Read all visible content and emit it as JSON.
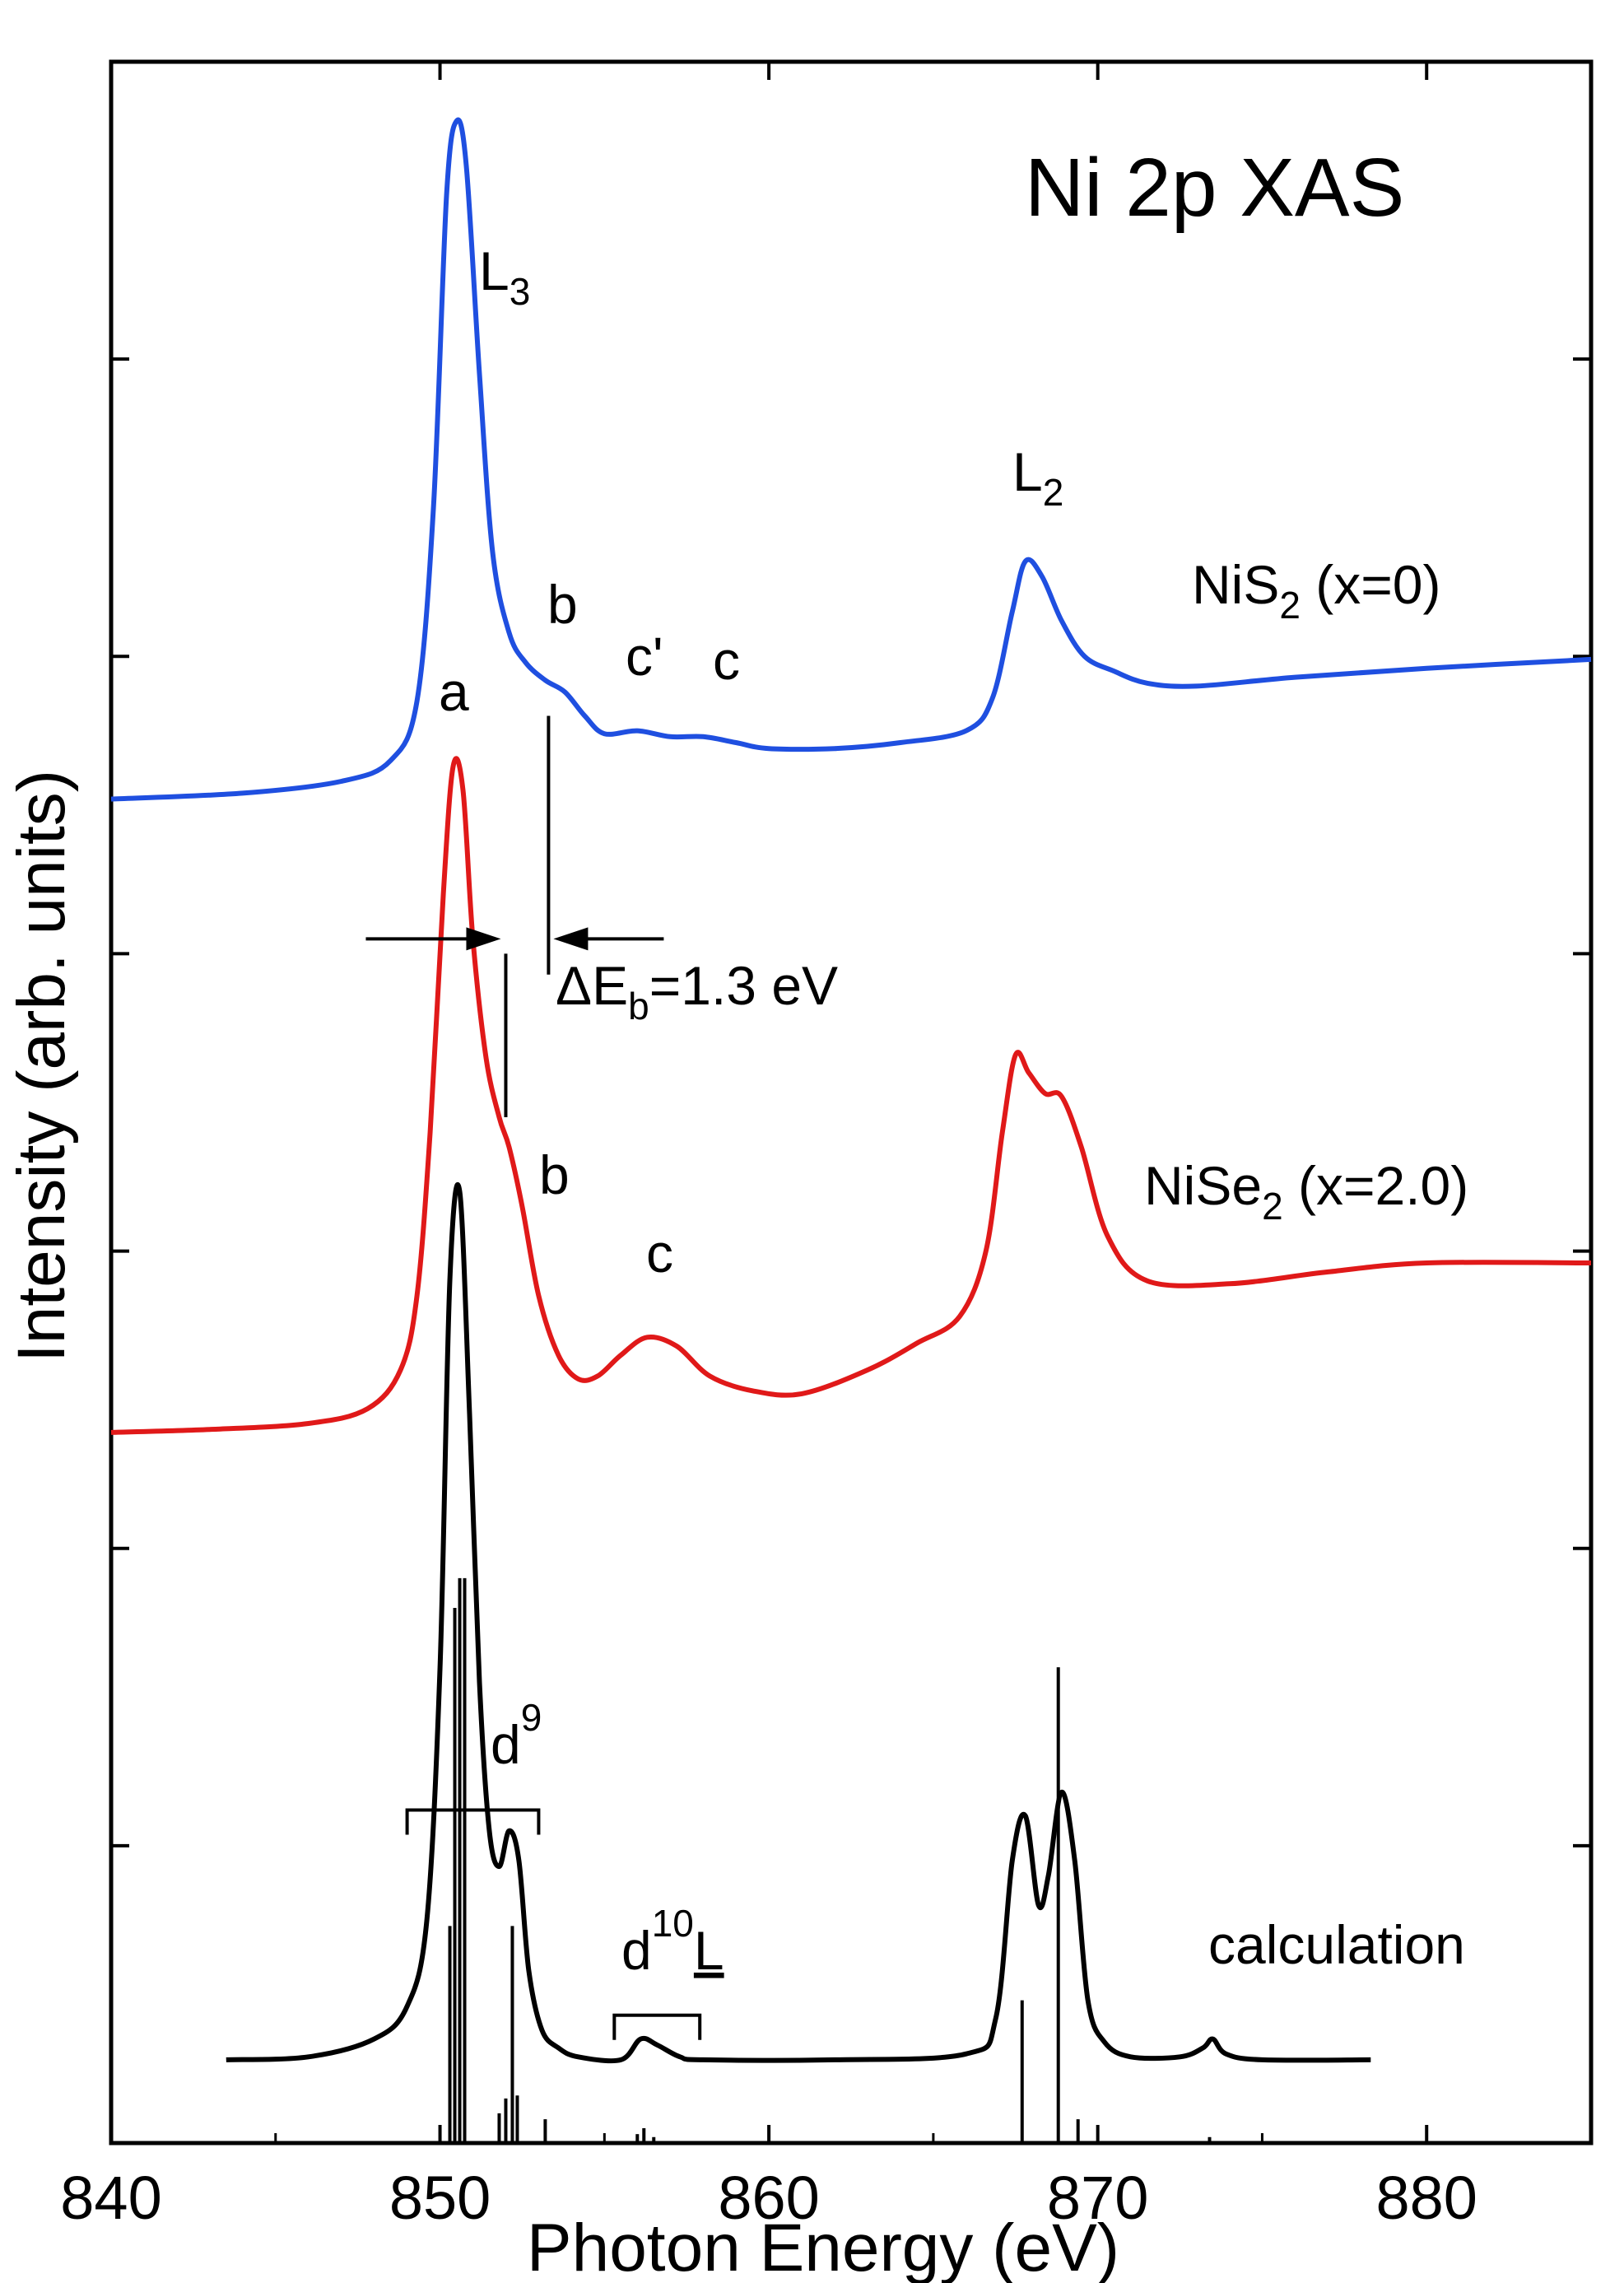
{
  "chart_data": {
    "type": "line",
    "title": "Ni 2p XAS",
    "xlabel": "Photon Energy (eV)",
    "ylabel": "Intensity (arb. units)",
    "xlim": [
      840,
      885
    ],
    "ylim": [
      0,
      7.0
    ],
    "x_ticks": [
      840,
      850,
      860,
      870,
      880
    ],
    "y_ticks": [
      0,
      1,
      2,
      3,
      4,
      5,
      6,
      7
    ],
    "y_tick_labels_shown": false,
    "series": [
      {
        "name": "NiS2 (x=0)",
        "color": "#1f4fe0",
        "x": [
          840,
          844,
          847,
          848.5,
          849.3,
          849.8,
          850.2,
          850.5,
          850.8,
          851.2,
          851.6,
          852.1,
          852.6,
          853.2,
          853.8,
          854.4,
          855,
          856,
          857,
          858,
          859,
          860,
          862,
          864,
          866,
          866.8,
          867.4,
          867.8,
          868.3,
          868.9,
          869.6,
          870.5,
          871.5,
          873,
          876,
          880,
          885
        ],
        "values": [
          4.52,
          4.54,
          4.58,
          4.65,
          4.85,
          5.5,
          6.55,
          6.8,
          6.65,
          5.95,
          5.35,
          5.08,
          4.98,
          4.92,
          4.88,
          4.8,
          4.74,
          4.75,
          4.73,
          4.73,
          4.71,
          4.69,
          4.69,
          4.71,
          4.75,
          4.86,
          5.15,
          5.32,
          5.27,
          5.12,
          5.0,
          4.95,
          4.91,
          4.9,
          4.93,
          4.96,
          4.99
        ]
      },
      {
        "name": "NiSe2 (x=2.0)",
        "color": "#e01919",
        "x": [
          840,
          843,
          846,
          847.8,
          848.8,
          849.3,
          849.7,
          850.1,
          850.4,
          850.7,
          851.0,
          851.4,
          851.8,
          852.1,
          852.5,
          853,
          853.6,
          854.2,
          854.8,
          855.5,
          856.3,
          857.2,
          858.2,
          859.5,
          861,
          863,
          864.5,
          865.8,
          866.6,
          867.1,
          867.5,
          867.9,
          868.4,
          868.9,
          869.5,
          870.3,
          871.5,
          874,
          877,
          880,
          885
        ],
        "values": [
          2.39,
          2.4,
          2.42,
          2.47,
          2.6,
          2.85,
          3.4,
          4.2,
          4.63,
          4.55,
          4.05,
          3.65,
          3.45,
          3.35,
          3.15,
          2.85,
          2.65,
          2.57,
          2.58,
          2.65,
          2.71,
          2.68,
          2.58,
          2.53,
          2.52,
          2.6,
          2.69,
          2.78,
          3.0,
          3.4,
          3.66,
          3.6,
          3.53,
          3.52,
          3.35,
          3.05,
          2.9,
          2.89,
          2.93,
          2.96,
          2.96
        ]
      },
      {
        "name": "calculation",
        "color": "#000000",
        "x": [
          843.5,
          846,
          848,
          849,
          849.6,
          850.0,
          850.3,
          850.6,
          850.9,
          851.2,
          851.5,
          851.8,
          852.1,
          852.4,
          852.7,
          853.1,
          853.6,
          854.2,
          855.5,
          856.1,
          856.6,
          857.3,
          858,
          862,
          866,
          866.9,
          867.4,
          867.8,
          868.2,
          868.5,
          868.9,
          869.3,
          869.7,
          870.2,
          871,
          872.5,
          873.2,
          873.5,
          873.9,
          875,
          878.3
        ],
        "values": [
          0.28,
          0.29,
          0.35,
          0.46,
          0.75,
          1.6,
          2.9,
          3.2,
          2.45,
          1.55,
          1.05,
          0.93,
          1.05,
          0.95,
          0.58,
          0.38,
          0.32,
          0.29,
          0.28,
          0.35,
          0.33,
          0.29,
          0.28,
          0.28,
          0.3,
          0.42,
          0.95,
          1.1,
          0.8,
          0.9,
          1.18,
          0.95,
          0.48,
          0.34,
          0.29,
          0.29,
          0.32,
          0.35,
          0.3,
          0.28,
          0.28
        ]
      }
    ],
    "calculation_sticks": {
      "baseline": 0,
      "x_range": [
        843.5,
        878.3
      ],
      "x": [
        850.3,
        850.45,
        850.6,
        850.75,
        851.8,
        852.0,
        852.2,
        852.35,
        853.2,
        856.0,
        856.2,
        856.5,
        867.7,
        868.8,
        869.4,
        873.4
      ],
      "values": [
        0.73,
        1.8,
        1.9,
        1.9,
        0.1,
        0.15,
        0.73,
        0.16,
        0.08,
        0.03,
        0.05,
        0.02,
        0.48,
        1.6,
        0.08,
        0.02
      ]
    },
    "annotations": {
      "title_text": "Ni 2p XAS",
      "L3": {
        "main": "L",
        "sub": "3"
      },
      "L2": {
        "main": "L",
        "sub": "2"
      },
      "nis2_label": {
        "main": "NiS",
        "sub": "2",
        "rest": " (x=0)"
      },
      "nise2_label": {
        "main": "NiSe",
        "sub": "2",
        "rest": " (x=2.0)"
      },
      "calc_label": "calculation",
      "peak_a": "a",
      "peak_b_top": "b",
      "peak_c_prime": "c'",
      "peak_c_top": "c",
      "peak_b_mid": "b",
      "peak_c_mid": "c",
      "delta_e": {
        "main": "ΔE",
        "sub": "b",
        "rest": "=1.3 eV"
      },
      "d9": {
        "main": "d",
        "sup": "9"
      },
      "d10L": {
        "main": "d",
        "sup": "10",
        "rest": "L"
      },
      "delta_lines_x": [
        852.0,
        853.3
      ],
      "d9_bracket_x": [
        849.0,
        853.0
      ],
      "d10L_bracket_x": [
        855.3,
        857.9
      ]
    }
  }
}
